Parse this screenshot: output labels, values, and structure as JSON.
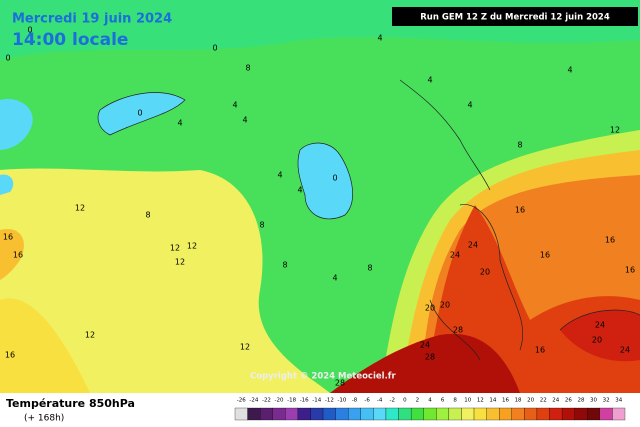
{
  "header": {
    "date": "Mercredi 19 juin 2024",
    "time": "14:00 locale",
    "run": "Run GEM 12 Z du Mercredi 12 juin 2024"
  },
  "copyright": "Copyright © 2024 Meteociel.fr",
  "footer": {
    "title": "Température 850hPa",
    "lead": "(+ 168h)"
  },
  "legend": {
    "values": [
      -26,
      -24,
      -22,
      -20,
      -18,
      -16,
      -14,
      -12,
      -10,
      -8,
      -6,
      -4,
      -2,
      0,
      2,
      4,
      6,
      8,
      10,
      12,
      14,
      16,
      18,
      20,
      22,
      24,
      26,
      28,
      30,
      32,
      34
    ],
    "colors": [
      "#e0e0e0",
      "#3d1a4d",
      "#5a1f6e",
      "#7a2b8f",
      "#9b3fb0",
      "#3c1f8a",
      "#2a3aa8",
      "#1f5cc8",
      "#2a7fe0",
      "#3aa0f0",
      "#44c0f5",
      "#5ad8f8",
      "#2ee8c8",
      "#30e080",
      "#40e040",
      "#70e830",
      "#a0f040",
      "#c8f050",
      "#f0f060",
      "#f8e040",
      "#f8c030",
      "#f8a020",
      "#f08020",
      "#e86018",
      "#e04010",
      "#d02010",
      "#b01008",
      "#900808",
      "#700808",
      "#d040a0",
      "#f0a0d0"
    ]
  },
  "contour_labels": [
    0,
    0,
    0,
    4,
    8,
    4,
    4,
    4,
    0,
    0,
    4,
    4,
    8,
    12,
    12,
    12,
    12,
    16,
    16,
    8,
    8,
    4,
    8,
    12,
    12,
    16,
    24,
    24,
    20,
    20,
    20,
    28,
    24,
    28,
    24,
    20,
    24,
    16,
    16,
    16,
    16,
    16,
    12,
    8,
    4,
    4,
    4,
    28
  ]
}
